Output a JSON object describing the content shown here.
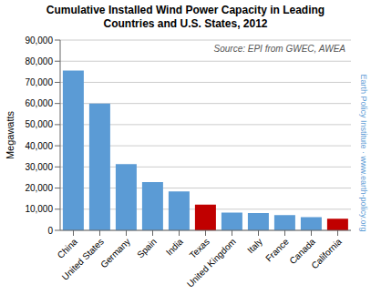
{
  "chart_data": {
    "type": "bar",
    "title": "Cumulative Installed Wind Power Capacity in Leading\nCountries and U.S. States, 2012",
    "categories": [
      "China",
      "United States",
      "Germany",
      "Spain",
      "India",
      "Texas",
      "United Kingdom",
      "Italy",
      "France",
      "Canada",
      "California"
    ],
    "values": [
      75564,
      60000,
      31332,
      22796,
      18421,
      12214,
      8445,
      8144,
      7196,
      6200,
      5540
    ],
    "colors": [
      "#5b9bd5",
      "#5b9bd5",
      "#5b9bd5",
      "#5b9bd5",
      "#5b9bd5",
      "#c00000",
      "#5b9bd5",
      "#5b9bd5",
      "#5b9bd5",
      "#5b9bd5",
      "#c00000"
    ],
    "ylabel": "Megawatts",
    "ylim": [
      0,
      90000
    ],
    "yticks": [
      0,
      {
        "value": 10000,
        "label": "10,000"
      },
      {
        "value": 20000,
        "label": "20,000"
      },
      {
        "value": 30000,
        "label": "30,000"
      },
      {
        "value": 40000,
        "label": "40,000"
      },
      {
        "value": 50000,
        "label": "50,000"
      },
      {
        "value": 60000,
        "label": "60,000"
      },
      {
        "value": 70000,
        "label": "70,000"
      },
      {
        "value": 80000,
        "label": "80,000"
      },
      {
        "value": 90000,
        "label": "90,000"
      }
    ],
    "grid": true,
    "annotations": [
      "Source: EPI from GWEC, AWEA",
      "Earth Policy Institute · www.earth-policy.org"
    ]
  }
}
